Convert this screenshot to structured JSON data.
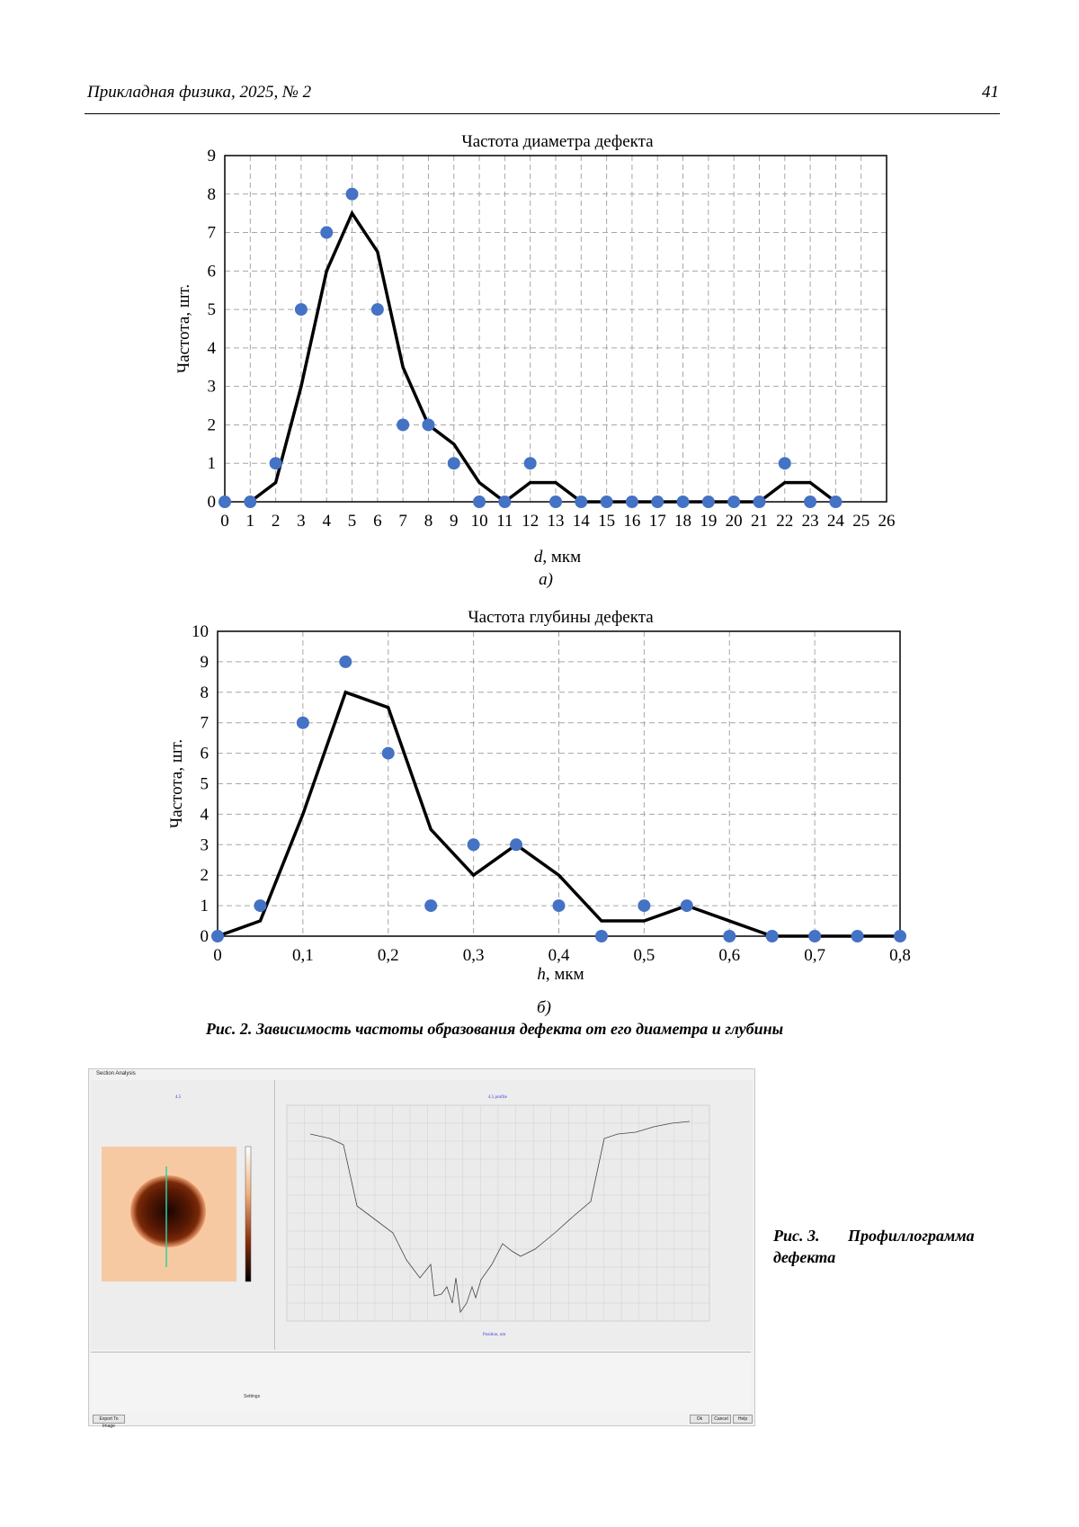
{
  "header": {
    "journal": "Прикладная физика, 2025, № 2",
    "page": "41"
  },
  "fig2": {
    "chart_data": [
      {
        "type": "scatter",
        "title": "Частота диаметра дефекта",
        "xlabel_var": "d",
        "xlabel_unit": ", мкм",
        "ylabel": "Частота, шт.",
        "xlim": [
          0,
          26
        ],
        "ylim": [
          0,
          9
        ],
        "xticks": [
          "0",
          "1",
          "2",
          "3",
          "4",
          "5",
          "6",
          "7",
          "8",
          "9",
          "10",
          "11",
          "12",
          "13",
          "14",
          "15",
          "16",
          "17",
          "18",
          "19",
          "20",
          "21",
          "22",
          "23",
          "24",
          "25",
          "26"
        ],
        "yticks": [
          "0",
          "1",
          "2",
          "3",
          "4",
          "5",
          "6",
          "7",
          "8",
          "9"
        ],
        "grid": true,
        "points": {
          "x": [
            0,
            1,
            2,
            3,
            4,
            5,
            6,
            7,
            8,
            9,
            10,
            11,
            12,
            13,
            14,
            15,
            16,
            17,
            18,
            19,
            20,
            21,
            22,
            23,
            24
          ],
          "y": [
            0,
            0,
            1,
            5,
            7,
            8,
            5,
            2,
            2,
            1,
            0,
            0,
            1,
            0,
            0,
            0,
            0,
            0,
            0,
            0,
            0,
            0,
            1,
            0,
            0
          ]
        },
        "line": {
          "x": [
            1,
            2,
            3,
            4,
            5,
            6,
            7,
            8,
            9,
            10,
            11,
            12,
            13,
            14,
            21,
            22,
            23,
            24
          ],
          "y": [
            0,
            0.5,
            3,
            6,
            7.5,
            6.5,
            3.5,
            2,
            1.5,
            0.5,
            0,
            0.5,
            0.5,
            0,
            0,
            0.5,
            0.5,
            0
          ]
        },
        "sublabel": "а)"
      },
      {
        "type": "scatter",
        "title": "Частота глубины дефекта",
        "xlabel_var": "h",
        "xlabel_unit": ", мкм",
        "ylabel": "Частота, шт.",
        "xlim": [
          0,
          0.8
        ],
        "ylim": [
          0,
          10
        ],
        "xticks": [
          "0",
          "0,1",
          "0,2",
          "0,3",
          "0,4",
          "0,5",
          "0,6",
          "0,7",
          "0,8"
        ],
        "yticks": [
          "0",
          "1",
          "2",
          "3",
          "4",
          "5",
          "6",
          "7",
          "8",
          "9",
          "10"
        ],
        "grid": true,
        "points": {
          "x": [
            0,
            0.05,
            0.1,
            0.15,
            0.2,
            0.25,
            0.3,
            0.35,
            0.4,
            0.45,
            0.5,
            0.55,
            0.6,
            0.65,
            0.7,
            0.75,
            0.8
          ],
          "y": [
            0,
            1,
            7,
            9,
            6,
            1,
            3,
            3,
            1,
            0,
            1,
            1,
            0,
            0,
            0,
            0,
            0
          ]
        },
        "line": {
          "x": [
            0,
            0.05,
            0.1,
            0.15,
            0.2,
            0.25,
            0.3,
            0.35,
            0.4,
            0.45,
            0.5,
            0.55,
            0.6,
            0.65,
            0.7,
            0.75,
            0.8
          ],
          "y": [
            0,
            0.5,
            4,
            8,
            7.5,
            3.5,
            2,
            3,
            2,
            0.5,
            0.5,
            1,
            0.5,
            0,
            0,
            0,
            0
          ]
        },
        "sublabel": "б)"
      }
    ],
    "colors": {
      "points": "#4472c4",
      "line": "#000000",
      "grid": "#a6a6a6"
    },
    "caption": "Рис. 2. Зависимость частоты образования дефекта от его диаметра и глубины"
  },
  "fig3": {
    "caption_part1": "Рис. 3.",
    "caption_part2": "Профиллограмма",
    "caption_part3": "дефекта",
    "screenshot": {
      "window_title": "Section Analysis",
      "right_title": "4.5 profile",
      "left_title": "4.5",
      "xaxis_label": "Position, um",
      "ok": "Ok",
      "cancel": "Cancel",
      "help": "Help",
      "export": "Export To Image",
      "settings": "Settings"
    }
  }
}
